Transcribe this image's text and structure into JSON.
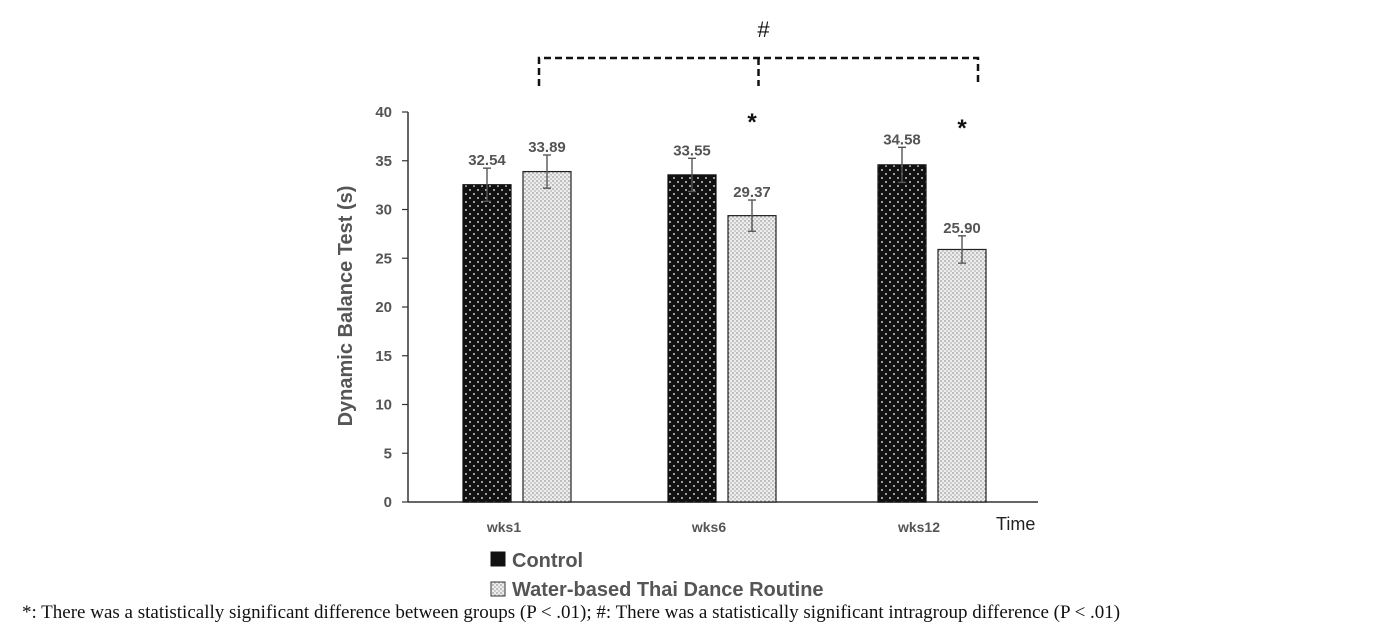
{
  "chart_data": {
    "type": "bar",
    "categories": [
      "wks1",
      "wks6",
      "wks12"
    ],
    "series": [
      {
        "name": "Control",
        "values": [
          32.54,
          33.55,
          34.58
        ],
        "errors": [
          1.7,
          1.7,
          1.8
        ],
        "labels": [
          "32.54",
          "33.55",
          "34.58"
        ],
        "color": "#111111"
      },
      {
        "name": "Water-based Thai Dance Routine",
        "values": [
          33.89,
          29.37,
          25.9
        ],
        "errors": [
          1.7,
          1.6,
          1.4
        ],
        "labels": [
          "33.89",
          "29.37",
          "25.90"
        ],
        "color": "#e6e6e6"
      }
    ],
    "xlabel": "Time",
    "ylabel": "Dynamic Balance Test (s)",
    "ylim": [
      0,
      40
    ],
    "yticks": [
      "0",
      "5",
      "10",
      "15",
      "20",
      "25",
      "30",
      "35",
      "40"
    ],
    "grid": false,
    "legend_position": "bottom-center",
    "annotations": {
      "between_groups_marker": "*",
      "between_groups_categories": [
        "wks6",
        "wks12"
      ],
      "intragroup_marker": "#",
      "intragroup_span": [
        "wks1",
        "wks12"
      ]
    }
  },
  "footnote": "*: There was a statistically significant difference between groups (P < .01); #: There was a statistically significant intragroup difference (P < .01)"
}
